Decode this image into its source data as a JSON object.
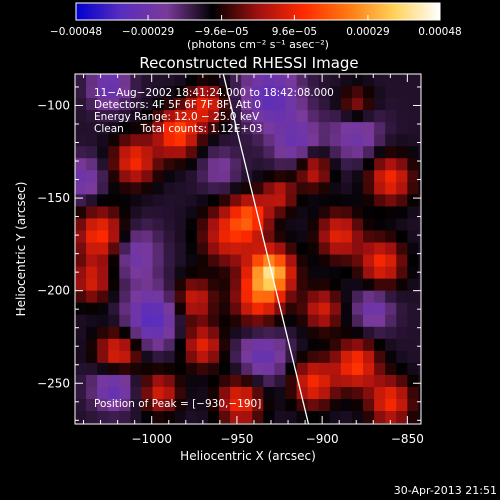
{
  "chart_data": {
    "type": "heatmap",
    "title": "Reconstructed RHESSI Image",
    "xlabel": "Heliocentric X (arcsec)",
    "ylabel": "Heliocentric Y (arcsec)",
    "xlim": [
      -1045,
      -842
    ],
    "ylim": [
      -272,
      -83
    ],
    "x_ticks": [
      -1000,
      -950,
      -900,
      -850
    ],
    "x_tick_labels": [
      "−1000",
      "−950",
      "−900",
      "−850"
    ],
    "y_ticks": [
      -100,
      -150,
      -200,
      -250
    ],
    "y_tick_labels": [
      "−100",
      "−150",
      "−200",
      "−250"
    ],
    "colorbar": {
      "range": [
        -0.00048,
        0.00048
      ],
      "ticks": [
        -0.00048,
        -0.00029,
        -9.6e-05,
        9.6e-05,
        0.00029,
        0.00048
      ],
      "tick_labels": [
        "−0.00048",
        "−0.00029",
        "−9.6e−05",
        "9.6e−05",
        "0.00029",
        "0.00048"
      ],
      "unit_label": "(photons cm⁻² s⁻¹ asec⁻²)",
      "colormap": [
        "#0000d0",
        "#5a2dbe",
        "#7a3a9a",
        "#000000",
        "#a01010",
        "#ff2a00",
        "#ff7a10",
        "#ffd25a",
        "#ffffff"
      ]
    },
    "info_lines": [
      "11−Aug−2002 18:41:24.000 to 18:42:08.000",
      "Detectors: 4F 5F 6F 7F 8F, Att 0",
      "Energy Range: 12.0 − 25.0 keV",
      "Clean     Total counts: 1.12E+03"
    ],
    "peak_label": "Position of Peak = [−930,−190]",
    "peak": [
      -930,
      -190
    ],
    "limb_line": [
      [
        -958,
        -83
      ],
      [
        -908,
        -272
      ]
    ],
    "blobs": [
      {
        "x": -930,
        "y": -190,
        "sigma": 9,
        "amp": 1.0
      },
      {
        "x": -938,
        "y": -205,
        "sigma": 10,
        "amp": 0.55
      },
      {
        "x": -955,
        "y": -170,
        "sigma": 11,
        "amp": 0.5
      },
      {
        "x": -942,
        "y": -160,
        "sigma": 8,
        "amp": 0.55
      },
      {
        "x": -985,
        "y": -115,
        "sigma": 9,
        "amp": 0.65
      },
      {
        "x": -1010,
        "y": -130,
        "sigma": 9,
        "amp": 0.55
      },
      {
        "x": -968,
        "y": -100,
        "sigma": 8,
        "amp": 0.5
      },
      {
        "x": -1030,
        "y": -170,
        "sigma": 10,
        "amp": 0.6
      },
      {
        "x": -1035,
        "y": -195,
        "sigma": 8,
        "amp": 0.45
      },
      {
        "x": -1020,
        "y": -235,
        "sigma": 9,
        "amp": 0.6
      },
      {
        "x": -995,
        "y": -255,
        "sigma": 8,
        "amp": 0.45
      },
      {
        "x": -975,
        "y": -205,
        "sigma": 8,
        "amp": 0.45
      },
      {
        "x": -970,
        "y": -230,
        "sigma": 8,
        "amp": 0.5
      },
      {
        "x": -948,
        "y": -260,
        "sigma": 9,
        "amp": 0.55
      },
      {
        "x": -905,
        "y": -250,
        "sigma": 9,
        "amp": 0.55
      },
      {
        "x": -880,
        "y": -240,
        "sigma": 9,
        "amp": 0.6
      },
      {
        "x": -860,
        "y": -260,
        "sigma": 9,
        "amp": 0.55
      },
      {
        "x": -900,
        "y": -210,
        "sigma": 8,
        "amp": 0.45
      },
      {
        "x": -865,
        "y": -185,
        "sigma": 9,
        "amp": 0.55
      },
      {
        "x": -890,
        "y": -170,
        "sigma": 9,
        "amp": 0.5
      },
      {
        "x": -860,
        "y": -140,
        "sigma": 9,
        "amp": 0.55
      },
      {
        "x": -905,
        "y": -135,
        "sigma": 7,
        "amp": 0.45
      },
      {
        "x": -880,
        "y": -100,
        "sigma": 7,
        "amp": 0.35
      },
      {
        "x": -925,
        "y": -148,
        "sigma": 7,
        "amp": 0.4
      },
      {
        "x": -1025,
        "y": -90,
        "sigma": 8,
        "amp": -0.35
      },
      {
        "x": -930,
        "y": -95,
        "sigma": 12,
        "amp": -0.4
      },
      {
        "x": -915,
        "y": -120,
        "sigma": 10,
        "amp": -0.3
      },
      {
        "x": -1010,
        "y": -180,
        "sigma": 10,
        "amp": -0.3
      },
      {
        "x": -1000,
        "y": -215,
        "sigma": 11,
        "amp": -0.45
      },
      {
        "x": -1022,
        "y": -250,
        "sigma": 9,
        "amp": -0.45
      },
      {
        "x": -935,
        "y": -235,
        "sigma": 10,
        "amp": -0.35
      },
      {
        "x": -870,
        "y": -210,
        "sigma": 8,
        "amp": -0.3
      },
      {
        "x": -880,
        "y": -115,
        "sigma": 10,
        "amp": -0.3
      },
      {
        "x": -1040,
        "y": -140,
        "sigma": 8,
        "amp": -0.3
      },
      {
        "x": -960,
        "y": -135,
        "sigma": 8,
        "amp": -0.2
      }
    ]
  },
  "footer": {
    "timestamp": "30-Apr-2013 21:51"
  }
}
